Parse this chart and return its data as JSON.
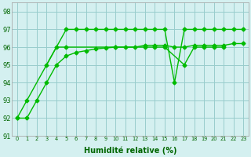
{
  "x": [
    0,
    1,
    2,
    3,
    4,
    5,
    6,
    7,
    8,
    9,
    10,
    11,
    12,
    13,
    14,
    15,
    16,
    17,
    18,
    19,
    20,
    21,
    22,
    23
  ],
  "line1": [
    92,
    93,
    null,
    null,
    null,
    97,
    97,
    97,
    97,
    97,
    97,
    97,
    97,
    97,
    97,
    97,
    94,
    97,
    97,
    97,
    97,
    97,
    97,
    97
  ],
  "line2": [
    null,
    null,
    null,
    95,
    96,
    96,
    null,
    null,
    null,
    null,
    96,
    null,
    null,
    96,
    96,
    96,
    null,
    95,
    96,
    96,
    96,
    96,
    null,
    null
  ],
  "line3": [
    92,
    92,
    93,
    94,
    95,
    95.5,
    95.7,
    95.8,
    95.9,
    95.95,
    96.0,
    96.0,
    96.0,
    96.1,
    96.1,
    96.1,
    96.0,
    96.0,
    96.1,
    96.1,
    96.1,
    96.1,
    96.2,
    96.2
  ],
  "line_color": "#00bb00",
  "bg_color": "#d4f0f0",
  "grid_color": "#99cccc",
  "ylim": [
    91,
    98.5
  ],
  "xlim": [
    -0.5,
    23.5
  ],
  "yticks": [
    91,
    92,
    93,
    94,
    95,
    96,
    97,
    98
  ],
  "xlabel": "Humidité relative (%)",
  "marker": "D",
  "marker_size": 2.5,
  "linewidth": 1.0,
  "axis_color": "#006600",
  "label_fontsize": 7.0
}
